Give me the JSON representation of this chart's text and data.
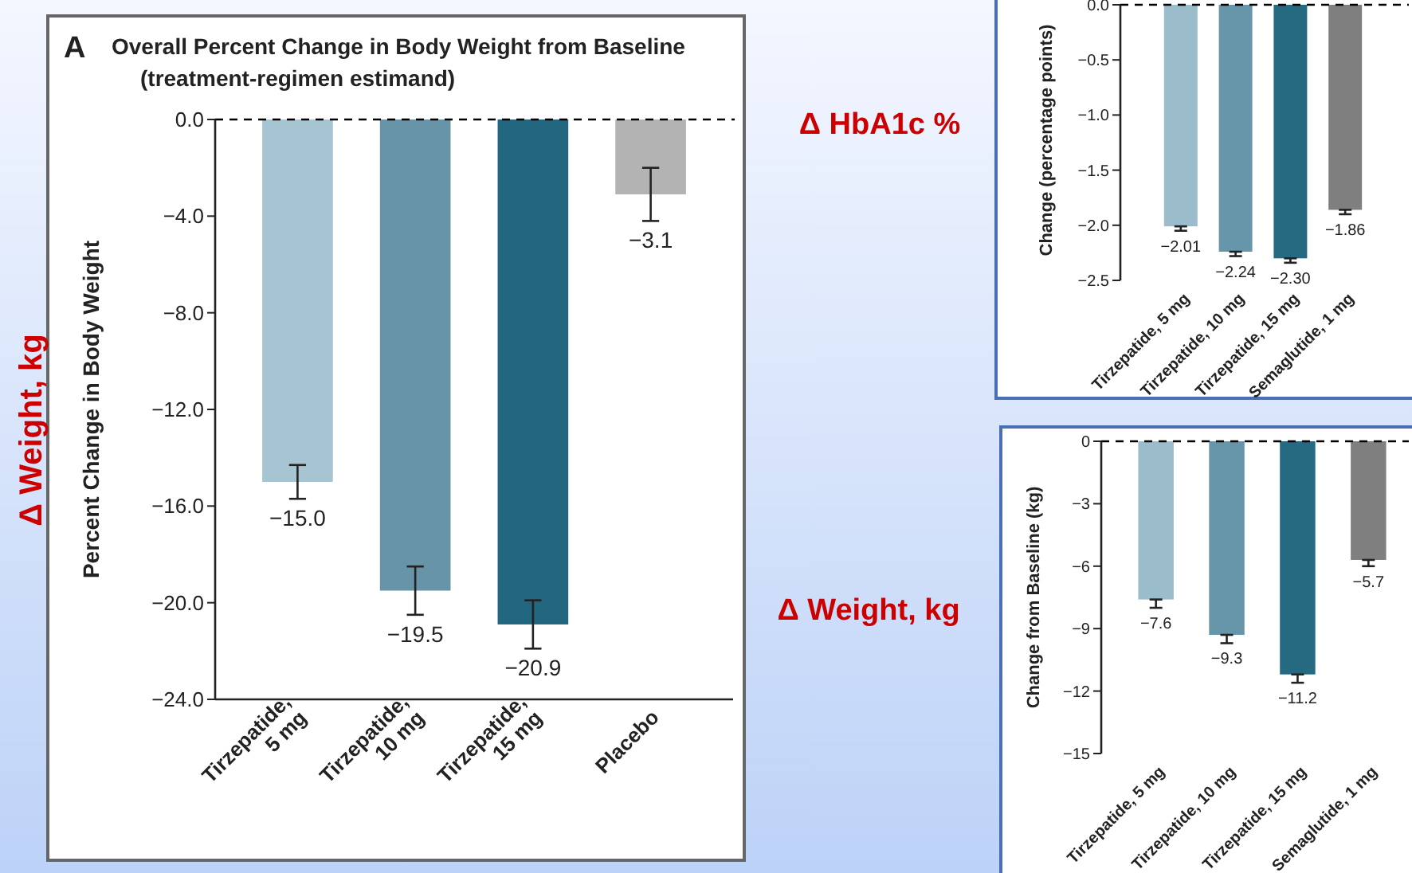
{
  "chart_data": [
    {
      "type": "bar",
      "title": "Overall Percent Change in Body Weight from Baseline",
      "subtitle": "(treatment-regimen estimand)",
      "ylabel": "Percent Change in Body Weight",
      "annotations": [
        "A",
        "Δ Weight, kg"
      ],
      "categories": [
        "Tirzepatide, 5 mg",
        "Tirzepatide, 10 mg",
        "Tirzepatide, 15 mg",
        "Placebo"
      ],
      "values": [
        -15.0,
        -19.5,
        -20.9,
        -3.1
      ],
      "colors": [
        "#a7c4d2",
        "#6894a8",
        "#236680",
        "#b3b3b3"
      ],
      "errors": [
        0.7,
        1.0,
        1.0,
        1.1
      ],
      "value_labels": [
        "−15.0",
        "−19.5",
        "−20.9",
        "−3.1"
      ],
      "ylim": [
        -24,
        0
      ],
      "yticks": [
        {
          "value": 0,
          "label": "0.0"
        },
        {
          "value": -4,
          "label": "−4.0"
        },
        {
          "value": -8,
          "label": "−8.0"
        },
        {
          "value": -12,
          "label": "−12.0"
        },
        {
          "value": -16,
          "label": "−16.0"
        },
        {
          "value": -20,
          "label": "−20.0"
        },
        {
          "value": -24,
          "label": "−24.0"
        }
      ],
      "ref_lines": [
        {
          "axis": "y",
          "value": 0,
          "line_style": "dashed",
          "color": "#000000"
        }
      ]
    },
    {
      "type": "bar",
      "ylabel": "Change (percentage points)",
      "annotations": [
        "Δ HbA1c %"
      ],
      "categories": [
        "Tirzepatide, 5 mg",
        "Tirzepatide, 10 mg",
        "Tirzepatide, 15 mg",
        "Semaglutide, 1 mg"
      ],
      "values": [
        -2.01,
        -2.24,
        -2.3,
        -1.86
      ],
      "colors": [
        "#9bbccb",
        "#6796ab",
        "#266a82",
        "#7f7f7f"
      ],
      "errors": [
        [
          -2.05,
          -2.01
        ],
        [
          -2.28,
          -2.24
        ],
        [
          -2.34,
          -2.3
        ],
        [
          -1.9,
          -1.86
        ]
      ],
      "value_labels": [
        "−2.01",
        "−2.24",
        "−2.30",
        "−1.86"
      ],
      "ylim": [
        -2.5,
        0
      ],
      "yticks": [
        {
          "value": 0,
          "label": "0.0"
        },
        {
          "value": -0.5,
          "label": "−0.5"
        },
        {
          "value": -1,
          "label": "−1.0"
        },
        {
          "value": -1.5,
          "label": "−1.5"
        },
        {
          "value": -2,
          "label": "−2.0"
        },
        {
          "value": -2.5,
          "label": "−2.5"
        }
      ],
      "ref_lines": [
        {
          "axis": "y",
          "value": 0,
          "line_style": "dashed",
          "color": "#000000"
        }
      ]
    },
    {
      "type": "bar",
      "ylabel": "Change from Baseline (kg)",
      "annotations": [
        "Δ Weight, kg"
      ],
      "categories": [
        "Tirzepatide, 5 mg",
        "Tirzepatide, 10 mg",
        "Tirzepatide, 15 mg",
        "Semaglutide, 1 mg"
      ],
      "values": [
        -7.6,
        -9.3,
        -11.2,
        -5.7
      ],
      "colors": [
        "#9bbccb",
        "#6796ab",
        "#266a82",
        "#7f7f7f"
      ],
      "errors": [
        [
          -8.0,
          -7.6
        ],
        [
          -9.7,
          -9.3
        ],
        [
          -11.6,
          -11.2
        ],
        [
          -6.0,
          -5.7
        ]
      ],
      "value_labels": [
        "−7.6",
        "−9.3",
        "−11.2",
        "−5.7"
      ],
      "ylim": [
        -15,
        0
      ],
      "yticks": [
        {
          "value": 0,
          "label": "0"
        },
        {
          "value": -3,
          "label": "−3"
        },
        {
          "value": -6,
          "label": "−6"
        },
        {
          "value": -9,
          "label": "−9"
        },
        {
          "value": -12,
          "label": "−12"
        },
        {
          "value": -15,
          "label": "−15"
        }
      ],
      "ref_lines": [
        {
          "axis": "y",
          "value": 0,
          "line_style": "dashed",
          "color": "#000000"
        }
      ]
    }
  ]
}
